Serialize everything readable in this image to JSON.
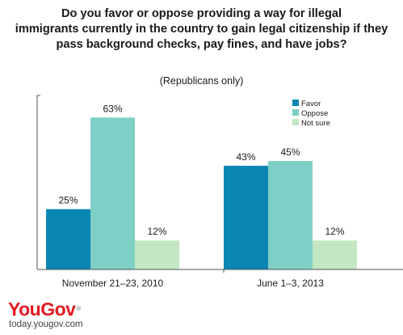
{
  "title_lines": [
    "Do you favor or oppose providing a way for illegal",
    "immigrants currently in the country to gain legal citizenship if they",
    "pass background checks, pay fines, and have jobs?"
  ],
  "subtitle": "(Republicans only)",
  "logo": {
    "text": "YouGov",
    "mark": "®"
  },
  "url": "today.yougov.com",
  "colors": {
    "Favor": "#0a86b3",
    "Oppose": "#7ecfc6",
    "Not sure": "#c3e7c3",
    "axis": "#555555"
  },
  "chart_data": {
    "type": "bar",
    "title": "Do you favor or oppose providing a way for illegal immigrants currently in the country to gain legal citizenship if they pass background checks, pay fines, and have jobs?",
    "subtitle": "(Republicans only)",
    "categories": [
      "November 21–23, 2010",
      "June 1–3, 2013"
    ],
    "series": [
      {
        "name": "Favor",
        "values": [
          25,
          43
        ],
        "labels": [
          "25%",
          "43%"
        ]
      },
      {
        "name": "Oppose",
        "values": [
          63,
          45
        ],
        "labels": [
          "63%",
          "45%"
        ]
      },
      {
        "name": "Not sure",
        "values": [
          12,
          12
        ],
        "labels": [
          "12%",
          "12%"
        ]
      }
    ],
    "ylim": [
      0,
      63
    ],
    "grid": false,
    "legend_position": "top-right"
  }
}
